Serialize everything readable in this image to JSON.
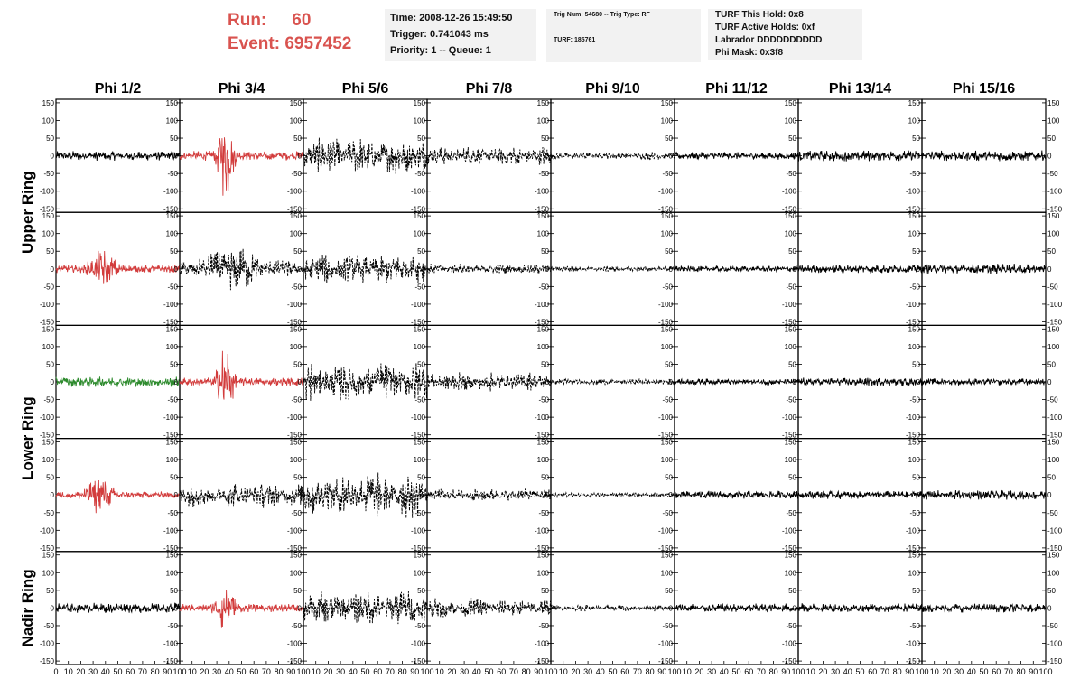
{
  "header": {
    "run_label": "Run:",
    "run_value": "60",
    "event_label": "Event:",
    "event_value": "6957452",
    "time_line": "Time: 2008-12-26 15:49:50",
    "trigger_line": "Trigger: 0.741043 ms",
    "priority_line": "Priority: 1 -- Queue: 1",
    "trig_line": "Trig Num: 54680 -- Trig Type: RF",
    "turf_line": "TURF: 185761",
    "hold_line": "TURF This Hold: 0x8",
    "active_holds_line": "TURF Active Holds: 0xf",
    "labrador_line": "Labrador DDDDDDDDDD",
    "phi_mask_line": "Phi Mask: 0x3f8"
  },
  "colors": {
    "red": "#d23c3c",
    "green": "#2e8b2e",
    "black": "#000000",
    "header_text": "#d9534f"
  },
  "chart_data": {
    "type": "line",
    "columns": [
      "Phi 1/2",
      "Phi 3/4",
      "Phi 5/6",
      "Phi 7/8",
      "Phi 9/10",
      "Phi 11/12",
      "Phi 13/14",
      "Phi 15/16"
    ],
    "ring_labels": [
      "Upper Ring",
      "Lower Ring",
      "Nadir Ring"
    ],
    "ylim": [
      -160,
      160
    ],
    "xlim": [
      0,
      100
    ],
    "yticks": [
      -150,
      -100,
      -50,
      0,
      50,
      100,
      150
    ],
    "xticks": [
      0,
      10,
      20,
      30,
      40,
      50,
      60,
      70,
      80,
      90,
      100
    ],
    "rows": [
      [
        {
          "style": "solid",
          "color": "black",
          "amp": 14,
          "burst": null
        },
        {
          "style": "solid",
          "color": "red",
          "amp": 14,
          "burst": {
            "center": 37,
            "width": 6,
            "amp": 120
          }
        },
        {
          "style": "dashed",
          "color": "black",
          "amp": 58,
          "burst": null
        },
        {
          "style": "dashed",
          "color": "black",
          "amp": 30,
          "burst": null
        },
        {
          "style": "dashed",
          "color": "black",
          "amp": 12,
          "burst": null
        },
        {
          "style": "solid",
          "color": "black",
          "amp": 11,
          "burst": null
        },
        {
          "style": "solid",
          "color": "black",
          "amp": 16,
          "burst": null
        },
        {
          "style": "solid",
          "color": "black",
          "amp": 16,
          "burst": null
        }
      ],
      [
        {
          "style": "solid",
          "color": "red",
          "amp": 12,
          "burst": {
            "center": 38,
            "width": 10,
            "amp": 45
          }
        },
        {
          "style": "dashed",
          "color": "black",
          "amp": 28,
          "burst": {
            "center": 42,
            "width": 20,
            "amp": 45
          }
        },
        {
          "style": "dashed",
          "color": "black",
          "amp": 50,
          "burst": null
        },
        {
          "style": "dashed",
          "color": "black",
          "amp": 16,
          "burst": null
        },
        {
          "style": "dashed",
          "color": "black",
          "amp": 9,
          "burst": null
        },
        {
          "style": "solid",
          "color": "black",
          "amp": 9,
          "burst": null
        },
        {
          "style": "solid",
          "color": "black",
          "amp": 13,
          "burst": null
        },
        {
          "style": "solid",
          "color": "black",
          "amp": 15,
          "burst": null
        }
      ],
      [
        {
          "style": "solid",
          "color": "green",
          "amp": 15,
          "burst": null
        },
        {
          "style": "solid",
          "color": "red",
          "amp": 13,
          "burst": {
            "center": 37,
            "width": 6,
            "amp": 120
          }
        },
        {
          "style": "dashed",
          "color": "black",
          "amp": 60,
          "burst": null
        },
        {
          "style": "dashed",
          "color": "black",
          "amp": 30,
          "burst": null
        },
        {
          "style": "dashed",
          "color": "black",
          "amp": 10,
          "burst": null
        },
        {
          "style": "solid",
          "color": "black",
          "amp": 9,
          "burst": null
        },
        {
          "style": "solid",
          "color": "black",
          "amp": 12,
          "burst": null
        },
        {
          "style": "solid",
          "color": "black",
          "amp": 10,
          "burst": null
        }
      ],
      [
        {
          "style": "solid",
          "color": "red",
          "amp": 10,
          "burst": {
            "center": 35,
            "width": 10,
            "amp": 50
          }
        },
        {
          "style": "dashed",
          "color": "black",
          "amp": 38,
          "burst": null
        },
        {
          "style": "dashed",
          "color": "black",
          "amp": 70,
          "burst": null
        },
        {
          "style": "dashed",
          "color": "black",
          "amp": 20,
          "burst": null
        },
        {
          "style": "dashed",
          "color": "black",
          "amp": 8,
          "burst": null
        },
        {
          "style": "solid",
          "color": "black",
          "amp": 12,
          "burst": null
        },
        {
          "style": "solid",
          "color": "black",
          "amp": 12,
          "burst": null
        },
        {
          "style": "solid",
          "color": "black",
          "amp": 14,
          "burst": null
        }
      ],
      [
        {
          "style": "solid",
          "color": "black",
          "amp": 15,
          "burst": null
        },
        {
          "style": "solid",
          "color": "red",
          "amp": 12,
          "burst": {
            "center": 37,
            "width": 6,
            "amp": 110
          }
        },
        {
          "style": "dashed",
          "color": "black",
          "amp": 55,
          "burst": null
        },
        {
          "style": "dashed",
          "color": "black",
          "amp": 30,
          "burst": null
        },
        {
          "style": "dashed",
          "color": "black",
          "amp": 10,
          "burst": null
        },
        {
          "style": "solid",
          "color": "black",
          "amp": 13,
          "burst": null
        },
        {
          "style": "solid",
          "color": "black",
          "amp": 14,
          "burst": null
        },
        {
          "style": "solid",
          "color": "black",
          "amp": 13,
          "burst": null
        }
      ]
    ]
  }
}
